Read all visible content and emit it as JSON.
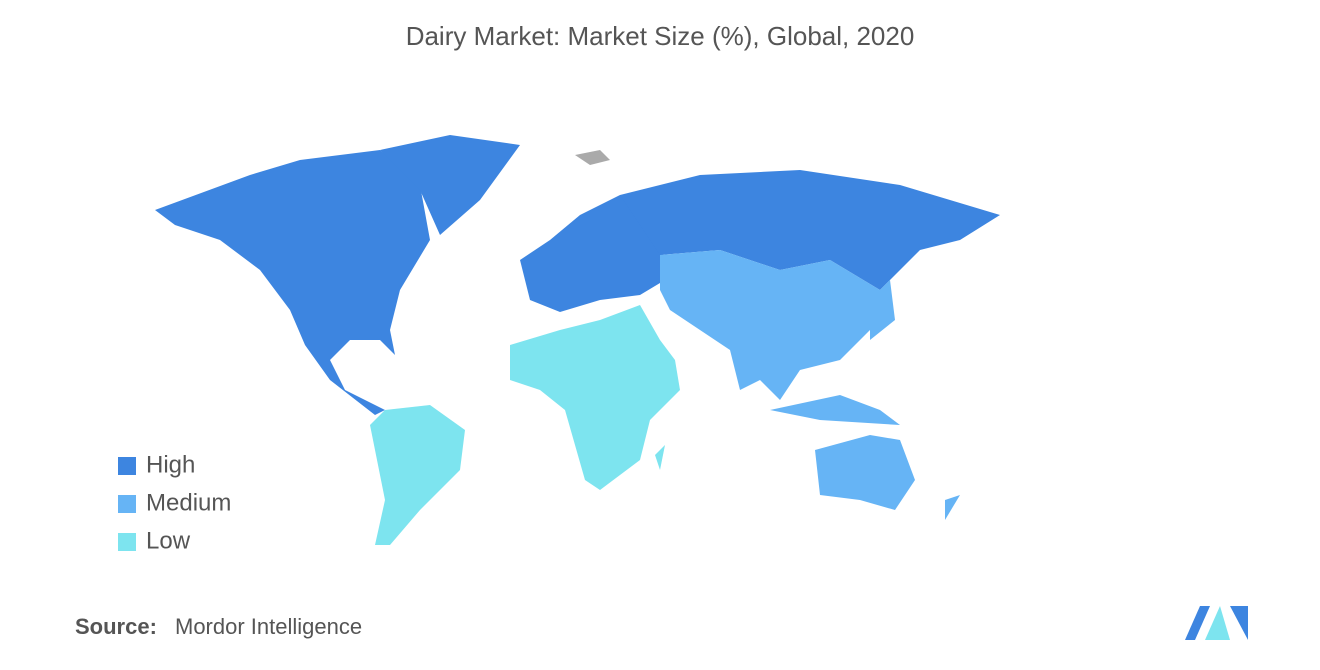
{
  "title": "Dairy Market: Market Size (%), Global, 2020",
  "legend": [
    {
      "label": "High",
      "color": "#3d85e0"
    },
    {
      "label": "Medium",
      "color": "#66b4f5"
    },
    {
      "label": "Low",
      "color": "#7de4ef"
    }
  ],
  "source": {
    "label": "Source:",
    "text": "Mordor Intelligence"
  }
}
